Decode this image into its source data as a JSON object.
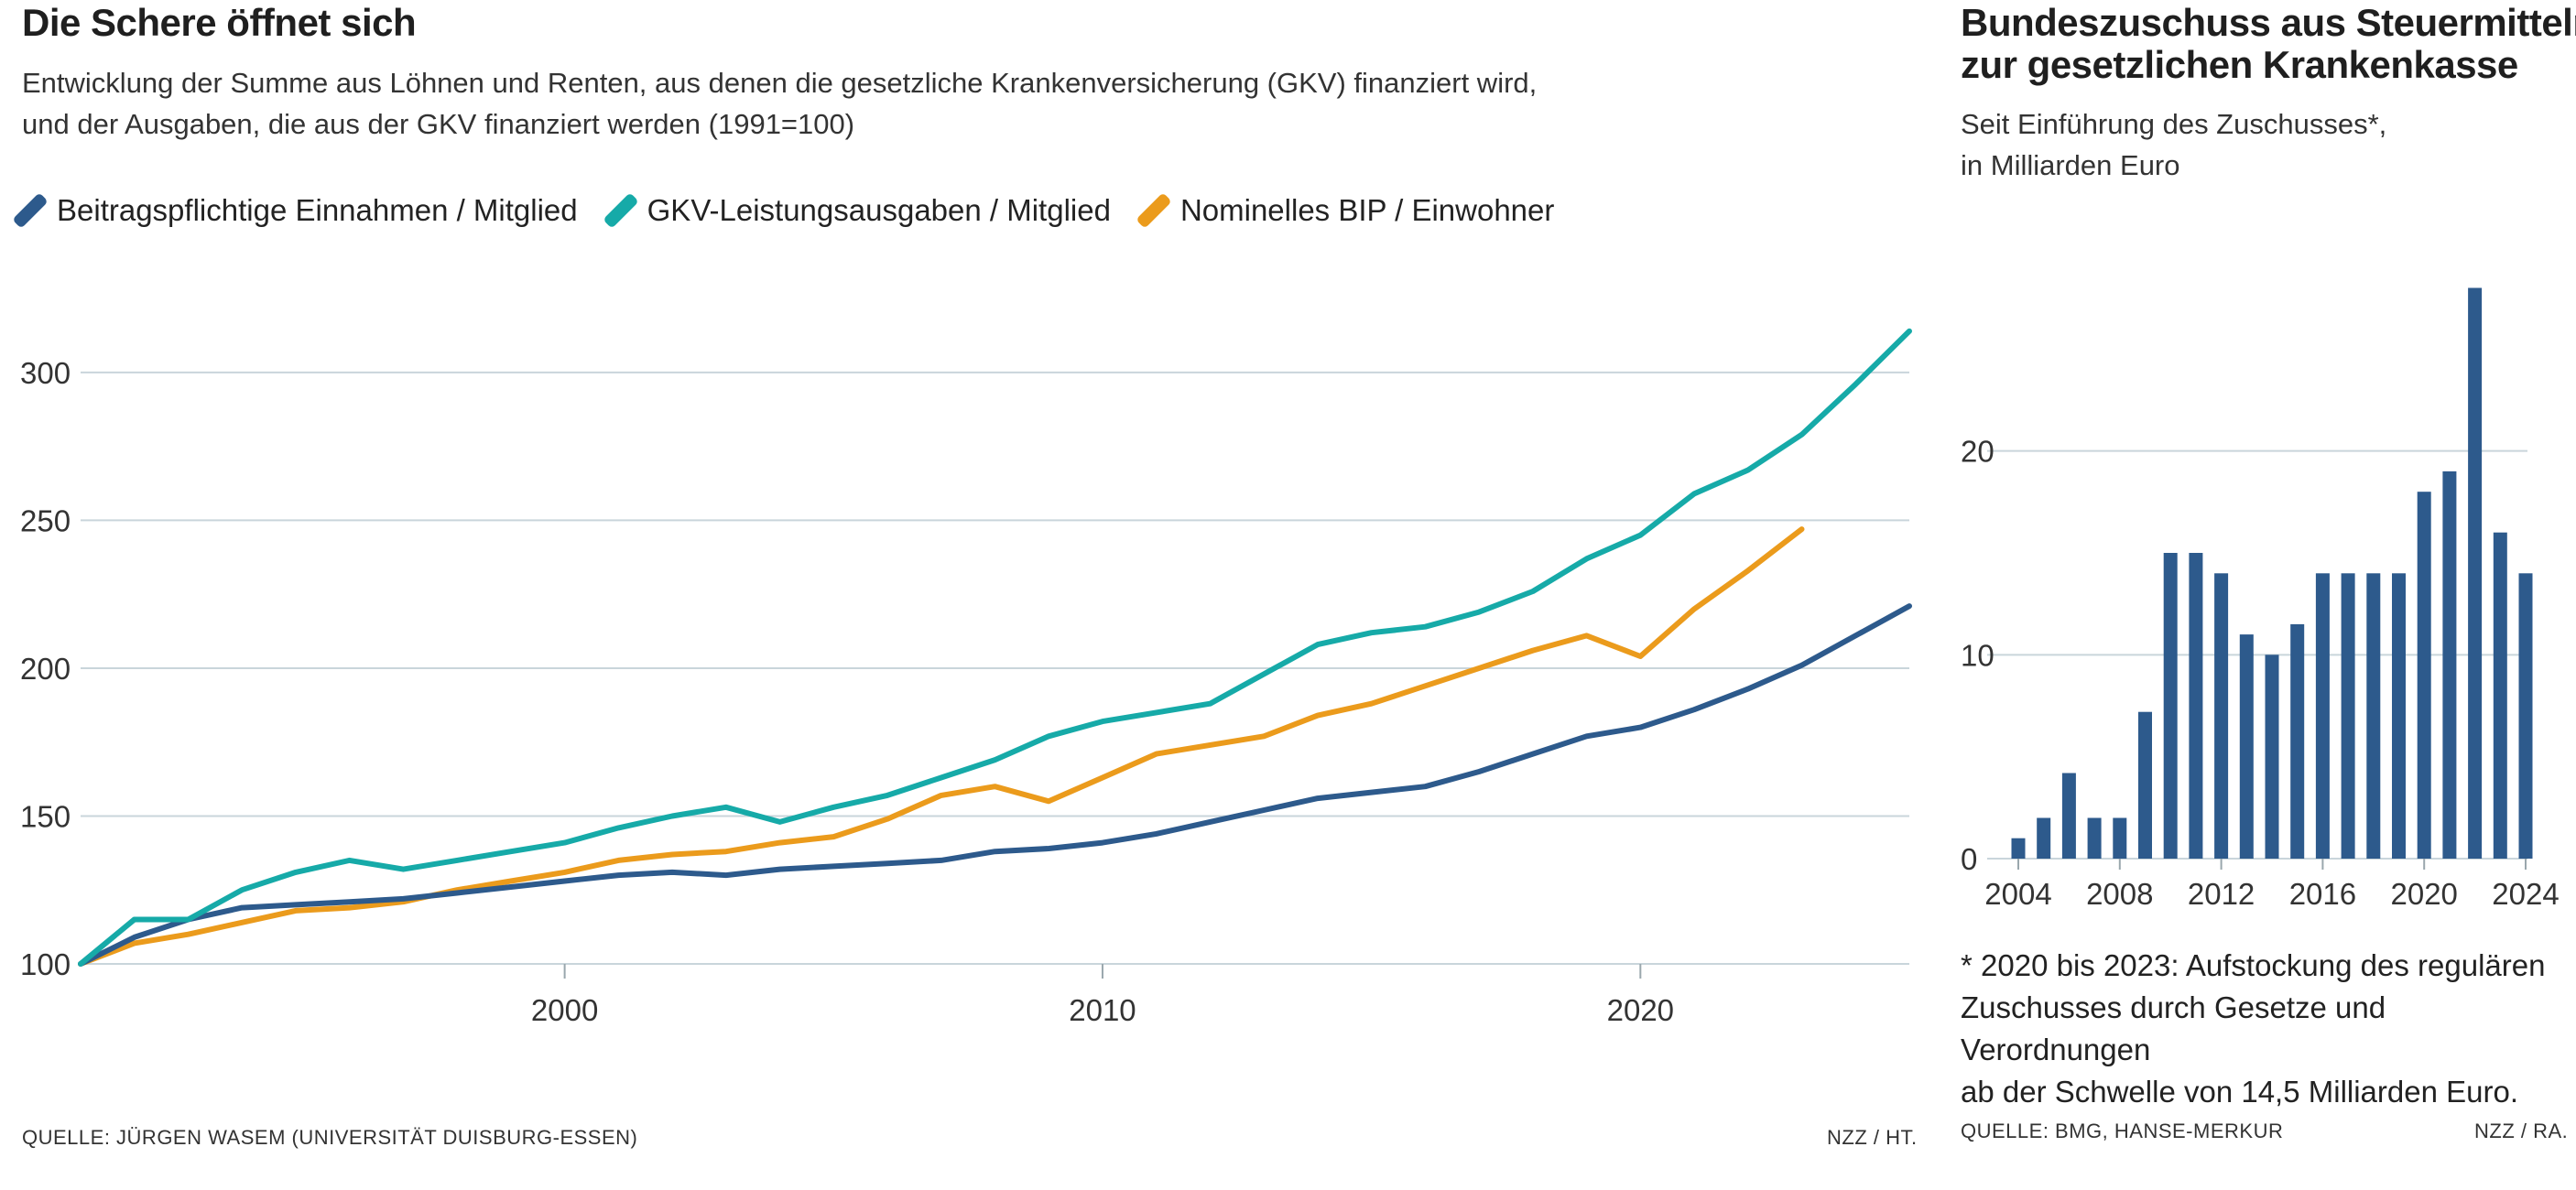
{
  "left": {
    "title": "Die Schere öffnet sich",
    "subtitle_line1": "Entwicklung der Summe aus Löhnen und Renten, aus denen die gesetzliche Krankenversicherung (GKV) finanziert wird,",
    "subtitle_line2": "und der Ausgaben, die aus der GKV finanziert werden (1991=100)",
    "source": "Quelle: Jürgen Wasem (Universität Duisburg-Essen)",
    "credit": "NZZ / Ht."
  },
  "right": {
    "title_line1": "Bundeszuschuss aus Steuermitteln",
    "title_line2": "zur gesetzlichen Krankenkasse",
    "subtitle_line1": "Seit Einführung des Zuschusses*,",
    "subtitle_line2": "in Milliarden Euro",
    "footnote_line1": "* 2020 bis 2023: Aufstockung des regulären",
    "footnote_line2": "Zuschusses durch Gesetze und Verordnungen",
    "footnote_line3": "ab der Schwelle von 14,5 Milliarden Euro.",
    "source": "Quelle: BMG, Hanse-Merkur",
    "credit": "NZZ / ra."
  },
  "chart_data": [
    {
      "type": "line",
      "title": "Die Schere öffnet sich",
      "xlabel": "",
      "ylabel": "",
      "xlim": [
        1991,
        2025
      ],
      "ylim": [
        100,
        330
      ],
      "x_ticks": [
        2000,
        2010,
        2020
      ],
      "y_ticks": [
        100,
        150,
        200,
        250,
        300
      ],
      "grid": true,
      "legend_position": "top",
      "x": [
        1991,
        1992,
        1993,
        1994,
        1995,
        1996,
        1997,
        1998,
        1999,
        2000,
        2001,
        2002,
        2003,
        2004,
        2005,
        2006,
        2007,
        2008,
        2009,
        2010,
        2011,
        2012,
        2013,
        2014,
        2015,
        2016,
        2017,
        2018,
        2019,
        2020,
        2021,
        2022,
        2023,
        2024,
        2025
      ],
      "series": [
        {
          "name": "Beitragspflichtige Einnahmen / Mitglied",
          "color": "#2d5a8c",
          "values": [
            100,
            109,
            115,
            119,
            120,
            121,
            122,
            124,
            126,
            128,
            130,
            131,
            130,
            132,
            133,
            134,
            135,
            138,
            139,
            141,
            144,
            148,
            152,
            156,
            158,
            160,
            165,
            171,
            177,
            180,
            186,
            193,
            201,
            211,
            221
          ]
        },
        {
          "name": "GKV-Leistungsausgaben / Mitglied",
          "color": "#16aaa8",
          "values": [
            100,
            115,
            115,
            125,
            131,
            135,
            132,
            135,
            138,
            141,
            146,
            150,
            153,
            148,
            153,
            157,
            163,
            169,
            177,
            182,
            185,
            188,
            198,
            208,
            212,
            214,
            219,
            226,
            237,
            245,
            259,
            267,
            279,
            296,
            314
          ]
        },
        {
          "name": "Nominelles BIP / Einwohner",
          "color": "#eb9b1c",
          "values": [
            100,
            107,
            110,
            114,
            118,
            119,
            121,
            125,
            128,
            131,
            135,
            137,
            138,
            141,
            143,
            149,
            157,
            160,
            155,
            163,
            171,
            174,
            177,
            184,
            188,
            194,
            200,
            206,
            211,
            204,
            220,
            233,
            247,
            null,
            null
          ]
        }
      ]
    },
    {
      "type": "bar",
      "title": "Bundeszuschuss aus Steuermitteln zur gesetzlichen Krankenkasse",
      "xlabel": "",
      "ylabel": "in Milliarden Euro",
      "ylim": [
        0,
        30
      ],
      "y_ticks": [
        0,
        10,
        20
      ],
      "x_ticks": [
        2004,
        2008,
        2012,
        2016,
        2020,
        2024
      ],
      "grid": true,
      "color": "#2d5a8c",
      "categories": [
        2004,
        2005,
        2006,
        2007,
        2008,
        2009,
        2010,
        2011,
        2012,
        2013,
        2014,
        2015,
        2016,
        2017,
        2018,
        2019,
        2020,
        2021,
        2022,
        2023,
        2024
      ],
      "values": [
        1,
        2,
        4.2,
        2,
        2,
        7.2,
        15,
        15,
        14,
        11,
        10,
        11.5,
        14,
        14,
        14,
        14,
        18,
        19,
        28,
        16,
        14
      ]
    }
  ]
}
